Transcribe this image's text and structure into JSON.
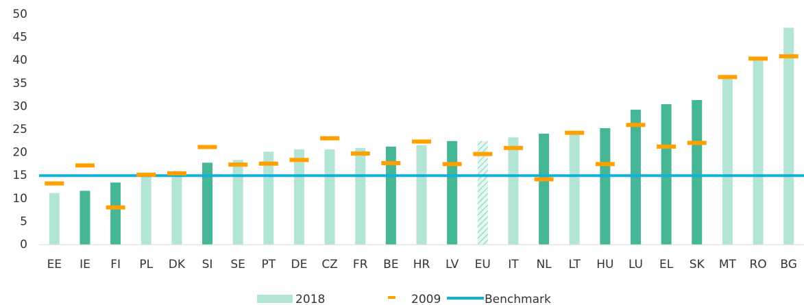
{
  "chart_data": {
    "type": "bar",
    "categories": [
      "EE",
      "IE",
      "FI",
      "PL",
      "DK",
      "SI",
      "SE",
      "PT",
      "DE",
      "CZ",
      "FR",
      "BE",
      "HR",
      "LV",
      "EU",
      "IT",
      "NL",
      "LT",
      "HU",
      "LU",
      "EL",
      "SK",
      "MT",
      "RO",
      "BG"
    ],
    "series": [
      {
        "name": "2018",
        "color": "#b3e5d7",
        "colors": [
          "#b3e5d7",
          "#45b797",
          "#45b797",
          "#b3e5d7",
          "#b3e5d7",
          "#45b797",
          "#b3e5d7",
          "#b3e5d7",
          "#b3e5d7",
          "#b3e5d7",
          "#b3e5d7",
          "#45b797",
          "#b3e5d7",
          "#45b797",
          "#b3e5d7",
          "#b3e5d7",
          "#45b797",
          "#b3e5d7",
          "#45b797",
          "#45b797",
          "#45b797",
          "#45b797",
          "#b3e5d7",
          "#b3e5d7",
          "#b3e5d7"
        ],
        "hatched": [
          false,
          false,
          false,
          false,
          false,
          false,
          false,
          false,
          false,
          false,
          false,
          false,
          false,
          false,
          true,
          false,
          false,
          false,
          false,
          false,
          false,
          false,
          false,
          false,
          false
        ],
        "values": [
          11.2,
          11.7,
          13.5,
          15.3,
          16.0,
          17.8,
          18.4,
          20.2,
          20.7,
          20.7,
          21.0,
          21.3,
          21.6,
          22.5,
          22.5,
          23.3,
          24.1,
          24.0,
          25.3,
          29.3,
          30.5,
          31.4,
          36.0,
          40.0,
          47.1
        ]
      },
      {
        "name": "2009",
        "color": "#ffa000",
        "marker": "dash",
        "values": [
          13.3,
          17.2,
          8.1,
          15.2,
          15.5,
          21.2,
          17.4,
          17.6,
          18.4,
          23.1,
          19.8,
          17.7,
          22.4,
          17.5,
          19.7,
          21.0,
          14.2,
          24.3,
          17.5,
          26.0,
          21.3,
          22.1,
          36.4,
          40.4,
          40.9
        ]
      }
    ],
    "benchmark": {
      "name": "Benchmark",
      "value": 15,
      "color": "#12b0da"
    },
    "ylim": [
      0,
      50
    ],
    "yticks": [
      0,
      5,
      10,
      15,
      20,
      25,
      30,
      35,
      40,
      45,
      50
    ],
    "grid": false
  }
}
